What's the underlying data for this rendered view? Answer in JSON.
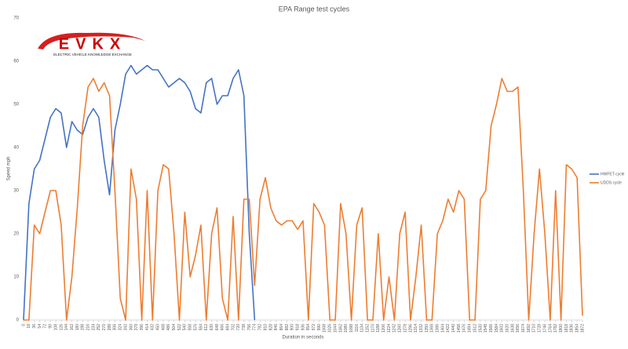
{
  "logo": {
    "text": "EVKX",
    "tagline": "ELECTRIC VEHICLE KNOWLEDGE EXCHANGE"
  },
  "chart_data": {
    "type": "line",
    "title": "EPA Range test cycles",
    "x_label": "Duration in seconds",
    "y_label": "Speed mph",
    "x": [
      0,
      18,
      36,
      54,
      72,
      90,
      108,
      126,
      144,
      162,
      180,
      198,
      216,
      234,
      252,
      270,
      288,
      306,
      324,
      342,
      360,
      378,
      396,
      414,
      432,
      450,
      468,
      486,
      504,
      522,
      540,
      558,
      576,
      594,
      612,
      630,
      648,
      666,
      684,
      702,
      720,
      738,
      756,
      774,
      792,
      810,
      828,
      846,
      864,
      882,
      900,
      918,
      936,
      954,
      972,
      990,
      1008,
      1026,
      1044,
      1062,
      1080,
      1098,
      1116,
      1134,
      1152,
      1170,
      1188,
      1206,
      1224,
      1242,
      1260,
      1278,
      1296,
      1314,
      1332,
      1350,
      1368,
      1386,
      1404,
      1422,
      1440,
      1458,
      1476,
      1494,
      1512,
      1530,
      1548,
      1566,
      1584,
      1602,
      1620,
      1638,
      1656,
      1674,
      1692,
      1710,
      1728,
      1746,
      1764,
      1782,
      1800,
      1818,
      1836,
      1854,
      1872
    ],
    "xlim": [
      0,
      1872
    ],
    "ylim": [
      0,
      70
    ],
    "yticks": [
      0,
      10,
      20,
      30,
      40,
      50,
      60,
      70
    ],
    "grid": false,
    "legend": "right",
    "series": [
      {
        "name": "HWFET cycle",
        "color": "#4472c4",
        "values": [
          0,
          27,
          35,
          37,
          42,
          47,
          49,
          48,
          40,
          46,
          44,
          43,
          47,
          49,
          47,
          37,
          29,
          44,
          50,
          57,
          59,
          57,
          58,
          59,
          58,
          58,
          56,
          54,
          55,
          56,
          55,
          53,
          49,
          48,
          55,
          56,
          50,
          52,
          52,
          56,
          58,
          52,
          20,
          0,
          null,
          null,
          null,
          null,
          null,
          null,
          null,
          null,
          null,
          null,
          null,
          null,
          null,
          null,
          null,
          null,
          null,
          null,
          null,
          null,
          null,
          null,
          null,
          null,
          null,
          null,
          null,
          null,
          null,
          null,
          null,
          null,
          null,
          null,
          null,
          null,
          null,
          null,
          null,
          null,
          null,
          null,
          null,
          null,
          null,
          null,
          null,
          null,
          null,
          null,
          null,
          null,
          null,
          null,
          null,
          null,
          null,
          null,
          null,
          null,
          null
        ]
      },
      {
        "name": "UDDS cycle",
        "color": "#ed7d31",
        "values": [
          0,
          0,
          22,
          20,
          25,
          30,
          30,
          22,
          0,
          10,
          26,
          45,
          54,
          56,
          53,
          55,
          52,
          30,
          5,
          0,
          35,
          28,
          0,
          30,
          0,
          30,
          36,
          35,
          20,
          0,
          25,
          10,
          15,
          22,
          0,
          20,
          26,
          5,
          0,
          24,
          0,
          28,
          28,
          8,
          28,
          33,
          26,
          23,
          22,
          23,
          23,
          21,
          23,
          0,
          27,
          25,
          22,
          0,
          0,
          27,
          20,
          0,
          22,
          26,
          0,
          0,
          20,
          0,
          10,
          0,
          20,
          25,
          0,
          10,
          22,
          0,
          0,
          20,
          23,
          28,
          25,
          30,
          28,
          0,
          0,
          28,
          30,
          45,
          50,
          56,
          53,
          53,
          54,
          30,
          0,
          20,
          35,
          20,
          0,
          30,
          0,
          36,
          35,
          33,
          1
        ]
      }
    ]
  }
}
